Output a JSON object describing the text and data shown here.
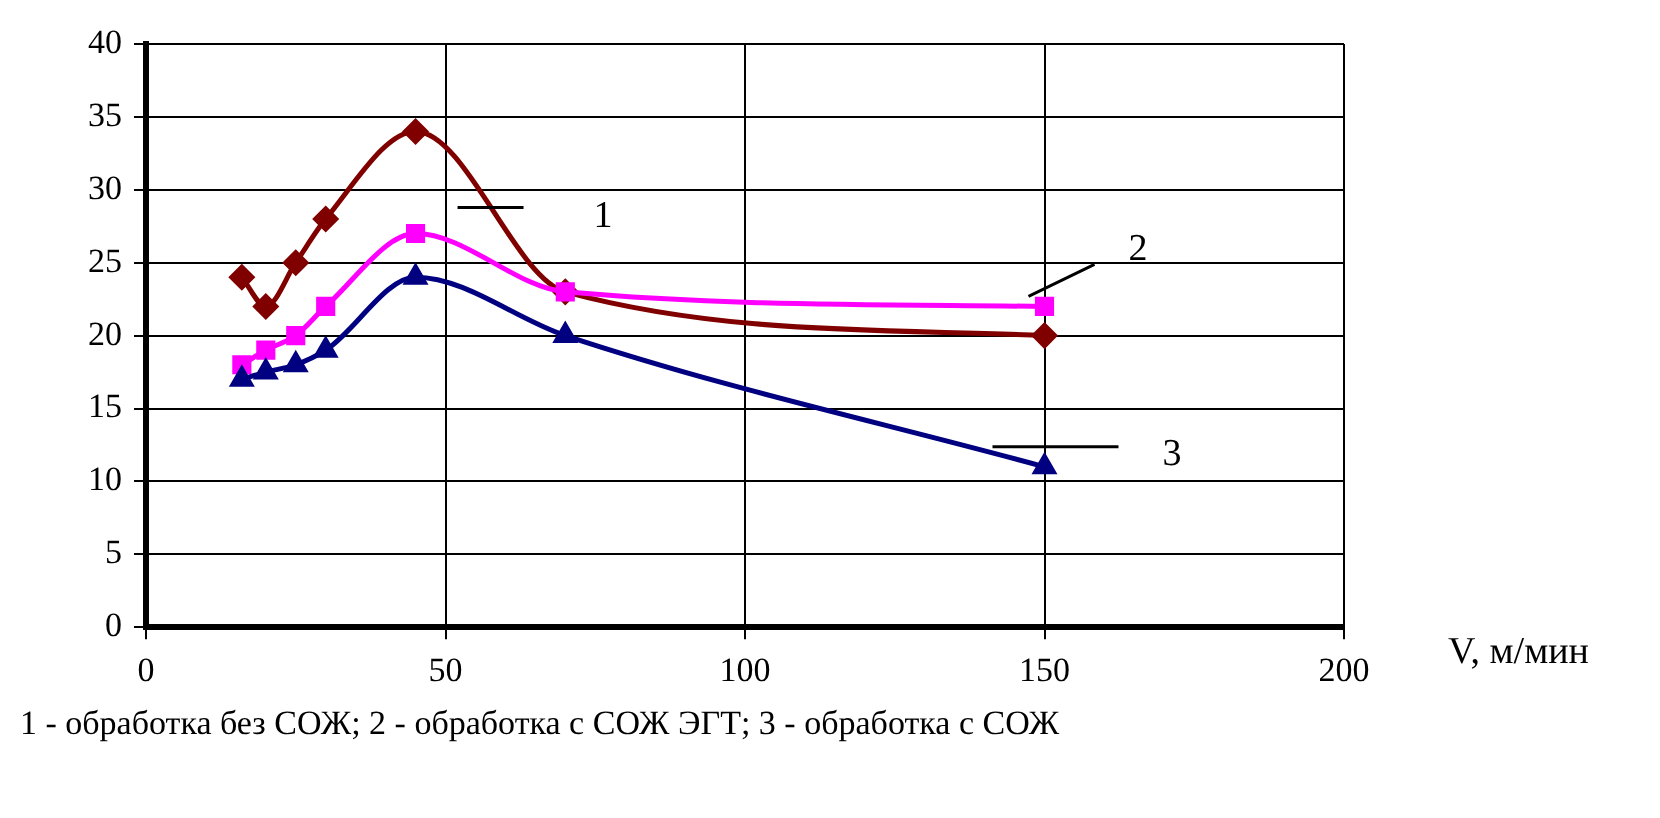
{
  "chart_data": {
    "type": "line",
    "xlabel": "V, м/мин",
    "x": [
      16,
      20,
      25,
      30,
      45,
      70,
      150
    ],
    "series": [
      {
        "name": "1",
        "color": "#800000",
        "marker": "diamond",
        "values": [
          24,
          22,
          25,
          28,
          34,
          23,
          20
        ]
      },
      {
        "name": "2",
        "color": "#ff00ff",
        "marker": "square",
        "values": [
          18,
          19,
          20,
          22,
          27,
          23,
          22
        ]
      },
      {
        "name": "3",
        "color": "#000080",
        "marker": "triangle",
        "values": [
          17,
          17.5,
          18,
          19,
          24,
          20,
          11
        ]
      }
    ],
    "xlim": [
      0,
      200
    ],
    "xticks": [
      0,
      50,
      100,
      150,
      200
    ],
    "ylim": [
      0,
      40
    ],
    "yticks": [
      0,
      5,
      10,
      15,
      20,
      25,
      30,
      35,
      40
    ],
    "grid": true,
    "legend": false,
    "annotations": [
      "1 - обработка без СОЖ; 2 - обработка с СОЖ ЭГТ; 3 - обработка с СОЖ"
    ]
  }
}
